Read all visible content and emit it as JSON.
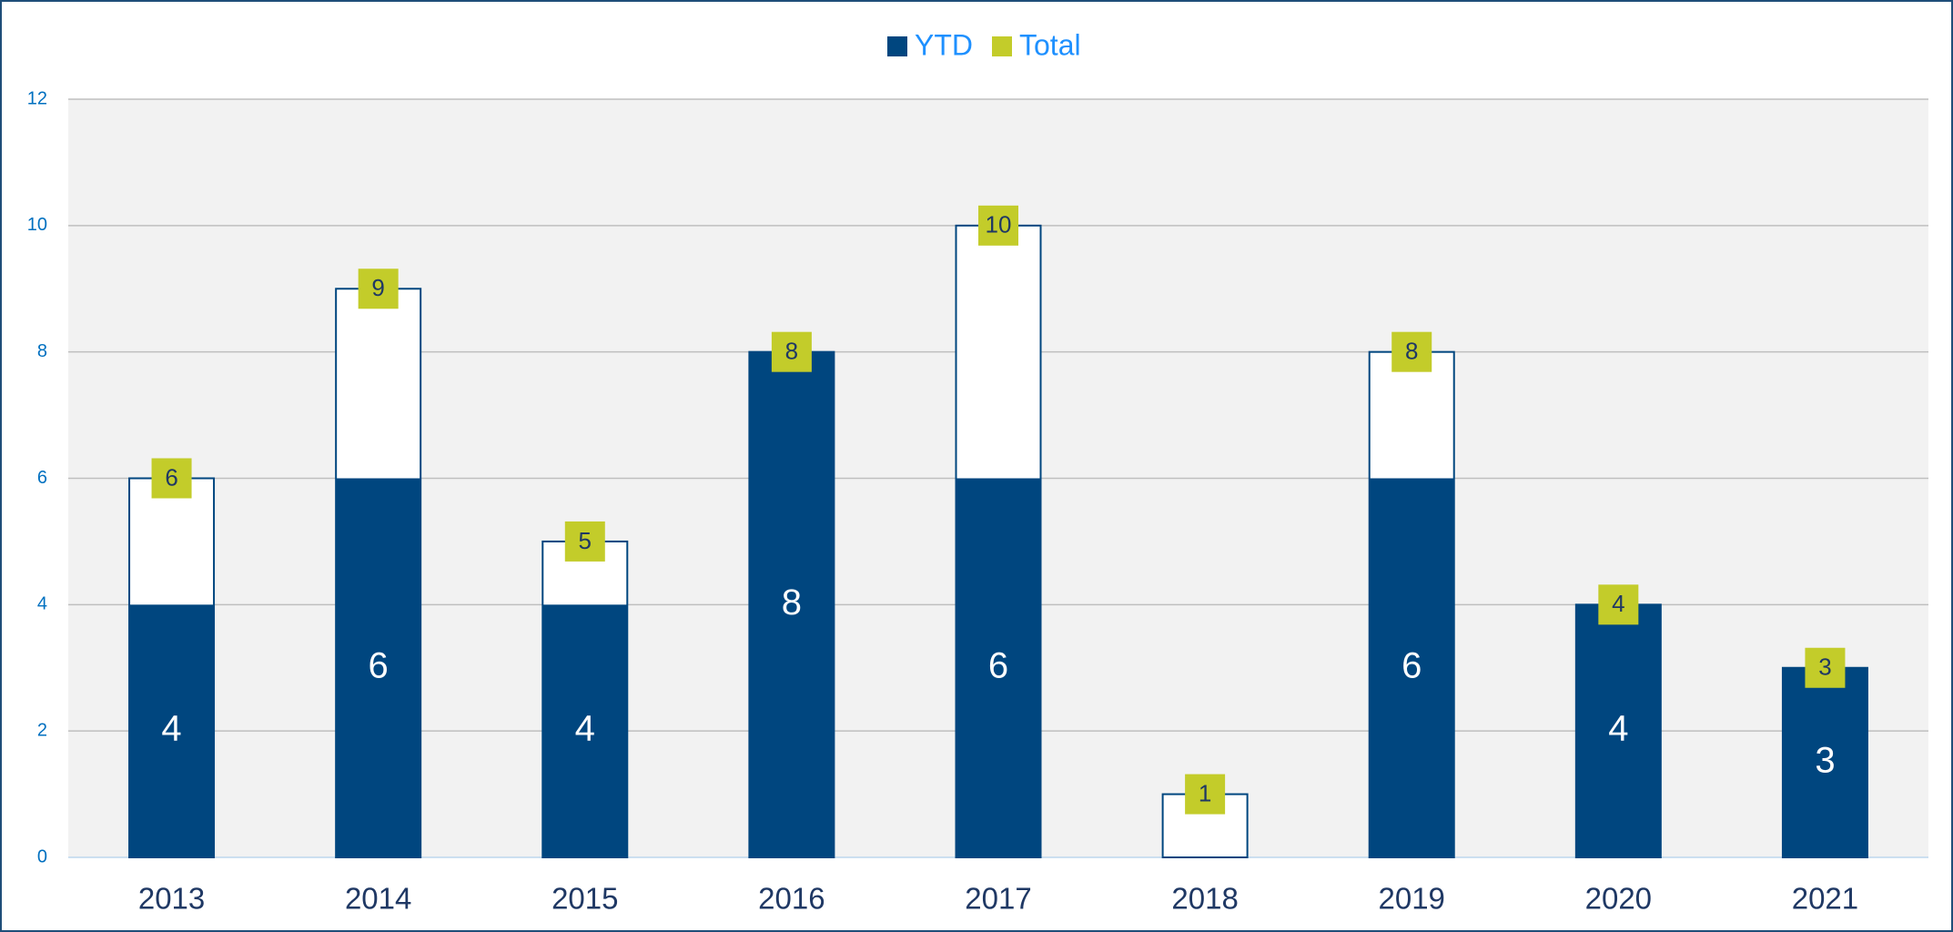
{
  "chart_data": {
    "type": "bar",
    "categories": [
      "2013",
      "2014",
      "2015",
      "2016",
      "2017",
      "2018",
      "2019",
      "2020",
      "2021"
    ],
    "series": [
      {
        "name": "YTD",
        "color": "#00467f",
        "values": [
          4,
          6,
          4,
          8,
          6,
          0,
          6,
          4,
          3
        ]
      },
      {
        "name": "Total",
        "color": "#c3cc2a",
        "values": [
          6,
          9,
          5,
          8,
          10,
          1,
          8,
          4,
          3
        ]
      }
    ],
    "ylim": [
      0,
      12
    ],
    "yticks": [
      0,
      2,
      4,
      6,
      8,
      10,
      12
    ],
    "grid": true,
    "legend": "top"
  }
}
